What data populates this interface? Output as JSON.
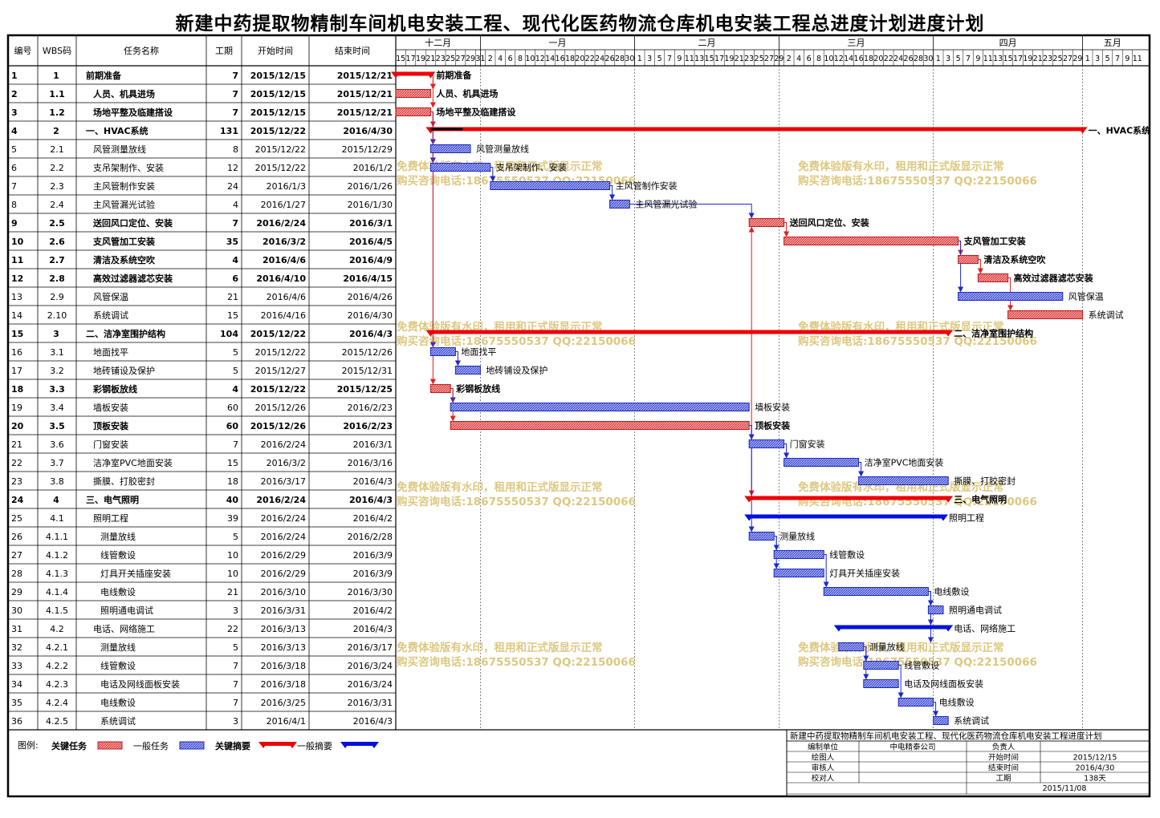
{
  "title": "新建中药提取物精制车间机电安装工程、现代化医药物流仓库机电安装工程总进度计划进度计划",
  "table": {
    "headers": [
      "编号",
      "WBS码",
      "任务名称",
      "工期",
      "开始时间",
      "结束时间"
    ],
    "rows": [
      {
        "id": "1",
        "wbs": "1",
        "name": "前期准备",
        "dur": "7",
        "start": "2015/12/15",
        "end": "2015/12/21",
        "bold": true,
        "indent": 0,
        "s": "2015-12-15",
        "e": "2015-12-21",
        "kind": "csum"
      },
      {
        "id": "2",
        "wbs": "1.1",
        "name": "人员、机具进场",
        "dur": "7",
        "start": "2015/12/15",
        "end": "2015/12/21",
        "bold": true,
        "indent": 1,
        "s": "2015-12-15",
        "e": "2015-12-21",
        "kind": "crit"
      },
      {
        "id": "3",
        "wbs": "1.2",
        "name": "场地平整及临建搭设",
        "dur": "7",
        "start": "2015/12/15",
        "end": "2015/12/21",
        "bold": true,
        "indent": 1,
        "s": "2015-12-15",
        "e": "2015-12-21",
        "kind": "crit"
      },
      {
        "id": "4",
        "wbs": "2",
        "name": "一、HVAC系统",
        "dur": "131",
        "start": "2015/12/22",
        "end": "2016/4/30",
        "bold": true,
        "indent": 0,
        "s": "2015-12-22",
        "e": "2016-04-30",
        "kind": "csum"
      },
      {
        "id": "5",
        "wbs": "2.1",
        "name": "风管测量放线",
        "dur": "8",
        "start": "2015/12/22",
        "end": "2015/12/29",
        "bold": false,
        "indent": 1,
        "s": "2015-12-22",
        "e": "2015-12-29",
        "kind": "norm"
      },
      {
        "id": "6",
        "wbs": "2.2",
        "name": "支吊架制作、安装",
        "dur": "12",
        "start": "2015/12/22",
        "end": "2016/1/2",
        "bold": false,
        "indent": 1,
        "s": "2015-12-22",
        "e": "2016-01-02",
        "kind": "norm"
      },
      {
        "id": "7",
        "wbs": "2.3",
        "name": "主风管制作安装",
        "dur": "24",
        "start": "2016/1/3",
        "end": "2016/1/26",
        "bold": false,
        "indent": 1,
        "s": "2016-01-03",
        "e": "2016-01-26",
        "kind": "norm"
      },
      {
        "id": "8",
        "wbs": "2.4",
        "name": "主风管漏光试验",
        "dur": "4",
        "start": "2016/1/27",
        "end": "2016/1/30",
        "bold": false,
        "indent": 1,
        "s": "2016-01-27",
        "e": "2016-01-30",
        "kind": "norm"
      },
      {
        "id": "9",
        "wbs": "2.5",
        "name": "送回风口定位、安装",
        "dur": "7",
        "start": "2016/2/24",
        "end": "2016/3/1",
        "bold": true,
        "indent": 1,
        "s": "2016-02-24",
        "e": "2016-03-01",
        "kind": "crit"
      },
      {
        "id": "10",
        "wbs": "2.6",
        "name": "支风管加工安装",
        "dur": "35",
        "start": "2016/3/2",
        "end": "2016/4/5",
        "bold": true,
        "indent": 1,
        "s": "2016-03-02",
        "e": "2016-04-05",
        "kind": "crit"
      },
      {
        "id": "11",
        "wbs": "2.7",
        "name": "清洁及系统空吹",
        "dur": "4",
        "start": "2016/4/6",
        "end": "2016/4/9",
        "bold": true,
        "indent": 1,
        "s": "2016-04-06",
        "e": "2016-04-09",
        "kind": "crit"
      },
      {
        "id": "12",
        "wbs": "2.8",
        "name": "高效过滤器滤芯安装",
        "dur": "6",
        "start": "2016/4/10",
        "end": "2016/4/15",
        "bold": true,
        "indent": 1,
        "s": "2016-04-10",
        "e": "2016-04-15",
        "kind": "crit"
      },
      {
        "id": "13",
        "wbs": "2.9",
        "name": "风管保温",
        "dur": "21",
        "start": "2016/4/6",
        "end": "2016/4/26",
        "bold": false,
        "indent": 1,
        "s": "2016-04-06",
        "e": "2016-04-26",
        "kind": "norm"
      },
      {
        "id": "14",
        "wbs": "2.10",
        "name": "系统调试",
        "dur": "15",
        "start": "2016/4/16",
        "end": "2016/4/30",
        "bold": false,
        "indent": 1,
        "s": "2016-04-16",
        "e": "2016-04-30",
        "kind": "crit"
      },
      {
        "id": "15",
        "wbs": "3",
        "name": "二、洁净室围护结构",
        "dur": "104",
        "start": "2015/12/22",
        "end": "2016/4/3",
        "bold": true,
        "indent": 0,
        "s": "2015-12-22",
        "e": "2016-04-03",
        "kind": "csum"
      },
      {
        "id": "16",
        "wbs": "3.1",
        "name": "地面找平",
        "dur": "5",
        "start": "2015/12/22",
        "end": "2015/12/26",
        "bold": false,
        "indent": 1,
        "s": "2015-12-22",
        "e": "2015-12-26",
        "kind": "norm"
      },
      {
        "id": "17",
        "wbs": "3.2",
        "name": "地砖铺设及保护",
        "dur": "5",
        "start": "2015/12/27",
        "end": "2015/12/31",
        "bold": false,
        "indent": 1,
        "s": "2015-12-27",
        "e": "2015-12-31",
        "kind": "norm"
      },
      {
        "id": "18",
        "wbs": "3.3",
        "name": "彩钢板放线",
        "dur": "4",
        "start": "2015/12/22",
        "end": "2015/12/25",
        "bold": true,
        "indent": 1,
        "s": "2015-12-22",
        "e": "2015-12-25",
        "kind": "crit"
      },
      {
        "id": "19",
        "wbs": "3.4",
        "name": "墙板安装",
        "dur": "60",
        "start": "2015/12/26",
        "end": "2016/2/23",
        "bold": false,
        "indent": 1,
        "s": "2015-12-26",
        "e": "2016-02-23",
        "kind": "norm"
      },
      {
        "id": "20",
        "wbs": "3.5",
        "name": "顶板安装",
        "dur": "60",
        "start": "2015/12/26",
        "end": "2016/2/23",
        "bold": true,
        "indent": 1,
        "s": "2015-12-26",
        "e": "2016-02-23",
        "kind": "crit"
      },
      {
        "id": "21",
        "wbs": "3.6",
        "name": "门窗安装",
        "dur": "7",
        "start": "2016/2/24",
        "end": "2016/3/1",
        "bold": false,
        "indent": 1,
        "s": "2016-02-24",
        "e": "2016-03-01",
        "kind": "norm"
      },
      {
        "id": "22",
        "wbs": "3.7",
        "name": "洁净室PVC地面安装",
        "dur": "15",
        "start": "2016/3/2",
        "end": "2016/3/16",
        "bold": false,
        "indent": 1,
        "s": "2016-03-02",
        "e": "2016-03-16",
        "kind": "norm"
      },
      {
        "id": "23",
        "wbs": "3.8",
        "name": "撕膜、打胶密封",
        "dur": "18",
        "start": "2016/3/17",
        "end": "2016/4/3",
        "bold": false,
        "indent": 1,
        "s": "2016-03-17",
        "e": "2016-04-03",
        "kind": "norm"
      },
      {
        "id": "24",
        "wbs": "4",
        "name": "三、电气照明",
        "dur": "40",
        "start": "2016/2/24",
        "end": "2016/4/3",
        "bold": true,
        "indent": 0,
        "s": "2016-02-24",
        "e": "2016-04-03",
        "kind": "csum"
      },
      {
        "id": "25",
        "wbs": "4.1",
        "name": "照明工程",
        "dur": "39",
        "start": "2016/2/24",
        "end": "2016/4/2",
        "bold": false,
        "indent": 1,
        "s": "2016-02-24",
        "e": "2016-04-02",
        "kind": "nsum"
      },
      {
        "id": "26",
        "wbs": "4.1.1",
        "name": "测量放线",
        "dur": "5",
        "start": "2016/2/24",
        "end": "2016/2/28",
        "bold": false,
        "indent": 2,
        "s": "2016-02-24",
        "e": "2016-02-28",
        "kind": "norm"
      },
      {
        "id": "27",
        "wbs": "4.1.2",
        "name": "线管敷设",
        "dur": "10",
        "start": "2016/2/29",
        "end": "2016/3/9",
        "bold": false,
        "indent": 2,
        "s": "2016-02-29",
        "e": "2016-03-09",
        "kind": "norm"
      },
      {
        "id": "28",
        "wbs": "4.1.3",
        "name": "灯具开关插座安装",
        "dur": "10",
        "start": "2016/2/29",
        "end": "2016/3/9",
        "bold": false,
        "indent": 2,
        "s": "2016-02-29",
        "e": "2016-03-09",
        "kind": "norm"
      },
      {
        "id": "29",
        "wbs": "4.1.4",
        "name": "电线敷设",
        "dur": "21",
        "start": "2016/3/10",
        "end": "2016/3/30",
        "bold": false,
        "indent": 2,
        "s": "2016-03-10",
        "e": "2016-03-30",
        "kind": "norm"
      },
      {
        "id": "30",
        "wbs": "4.1.5",
        "name": "照明通电调试",
        "dur": "3",
        "start": "2016/3/31",
        "end": "2016/4/2",
        "bold": false,
        "indent": 2,
        "s": "2016-03-31",
        "e": "2016-04-02",
        "kind": "norm"
      },
      {
        "id": "31",
        "wbs": "4.2",
        "name": "电话、网络施工",
        "dur": "22",
        "start": "2016/3/13",
        "end": "2016/4/3",
        "bold": false,
        "indent": 1,
        "s": "2016-03-13",
        "e": "2016-04-03",
        "kind": "nsum"
      },
      {
        "id": "32",
        "wbs": "4.2.1",
        "name": "测量放线",
        "dur": "5",
        "start": "2016/3/13",
        "end": "2016/3/17",
        "bold": false,
        "indent": 2,
        "s": "2016-03-13",
        "e": "2016-03-17",
        "kind": "norm"
      },
      {
        "id": "33",
        "wbs": "4.2.2",
        "name": "线管敷设",
        "dur": "7",
        "start": "2016/3/18",
        "end": "2016/3/24",
        "bold": false,
        "indent": 2,
        "s": "2016-03-18",
        "e": "2016-03-24",
        "kind": "norm"
      },
      {
        "id": "34",
        "wbs": "4.2.3",
        "name": "电话及网线面板安装",
        "dur": "7",
        "start": "2016/3/18",
        "end": "2016/3/24",
        "bold": false,
        "indent": 2,
        "s": "2016-03-18",
        "e": "2016-03-24",
        "kind": "norm"
      },
      {
        "id": "35",
        "wbs": "4.2.4",
        "name": "电线敷设",
        "dur": "7",
        "start": "2016/3/25",
        "end": "2016/3/31",
        "bold": false,
        "indent": 2,
        "s": "2016-03-25",
        "e": "2016-03-31",
        "kind": "norm"
      },
      {
        "id": "36",
        "wbs": "4.2.5",
        "name": "系统调试",
        "dur": "3",
        "start": "2016/4/1",
        "end": "2016/4/3",
        "bold": false,
        "indent": 2,
        "s": "2016-04-01",
        "e": "2016-04-03",
        "kind": "norm"
      }
    ]
  },
  "timeline": {
    "months": [
      {
        "label": "十二月",
        "first": "2015-12-15",
        "last": "2015-12-31"
      },
      {
        "label": "一月",
        "first": "2016-01-01",
        "last": "2016-01-31"
      },
      {
        "label": "二月",
        "first": "2016-02-01",
        "last": "2016-02-29"
      },
      {
        "label": "三月",
        "first": "2016-03-01",
        "last": "2016-03-31"
      },
      {
        "label": "四月",
        "first": "2016-04-01",
        "last": "2016-04-30"
      },
      {
        "label": "五月",
        "first": "2016-05-01",
        "last": "2016-05-12"
      }
    ],
    "tick_start": "2015-12-15",
    "tick_end": "2016-05-12"
  },
  "links": [
    [
      1,
      2
    ],
    [
      1,
      3
    ],
    [
      3,
      4
    ],
    [
      3,
      5
    ],
    [
      3,
      6
    ],
    [
      3,
      16
    ],
    [
      3,
      18
    ],
    [
      6,
      7
    ],
    [
      7,
      8
    ],
    [
      8,
      9
    ],
    [
      9,
      10
    ],
    [
      10,
      11
    ],
    [
      10,
      13
    ],
    [
      11,
      12
    ],
    [
      12,
      14
    ],
    [
      16,
      17
    ],
    [
      18,
      19
    ],
    [
      18,
      20
    ],
    [
      20,
      21
    ],
    [
      21,
      22
    ],
    [
      22,
      23
    ],
    [
      20,
      9
    ],
    [
      20,
      24
    ],
    [
      20,
      26
    ],
    [
      26,
      27
    ],
    [
      26,
      28
    ],
    [
      27,
      29
    ],
    [
      29,
      30
    ],
    [
      29,
      31
    ],
    [
      29,
      32
    ],
    [
      32,
      33
    ],
    [
      32,
      34
    ],
    [
      33,
      35
    ],
    [
      35,
      36
    ]
  ],
  "watermark": {
    "line1": "免费体验版有水印，租用和正式版显示正常",
    "line2": "购买咨询电话:18675550537 QQ:22150066"
  },
  "legend": {
    "label": "图例:",
    "items": [
      {
        "text": "关键任务",
        "kind": "crit"
      },
      {
        "text": "一般任务",
        "kind": "norm"
      },
      {
        "text": "关键摘要",
        "kind": "csum"
      },
      {
        "text": "一般摘要",
        "kind": "nsum"
      }
    ]
  },
  "info": {
    "title": "新建中药提取物精制车间机电安装工程、现代化医药物流仓库机电安装工程进度计划",
    "rows": [
      [
        "编制单位",
        "中电精泰公司",
        "负责人",
        ""
      ],
      [
        "绘图人",
        "",
        "开始时间",
        "2015/12/15"
      ],
      [
        "审核人",
        "",
        "结束时间",
        "2016/4/30"
      ],
      [
        "校对人",
        "",
        "工期",
        "138天"
      ]
    ],
    "date": "2015/11/08"
  },
  "colors": {
    "critical": "#e03a3a",
    "critical_fill": "#f08a8a",
    "normal": "#2a32c8",
    "normal_fill": "#8c94ef",
    "crit_summary": "#ee0000",
    "norm_summary": "#0010e0",
    "watermark": "#ddc880"
  }
}
